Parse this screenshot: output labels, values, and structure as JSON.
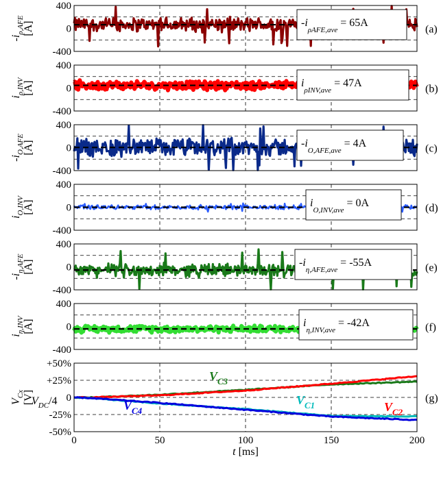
{
  "chart_data": [
    {
      "id": "a",
      "type": "line",
      "panel_label": "(a)",
      "ylabel_main": "-i",
      "ylabel_sub": "ρ,AFE",
      "ylabel_unit": "[A]",
      "yticks": [
        "400",
        "0",
        "-400"
      ],
      "ylim": [
        -400,
        400
      ],
      "series": [
        {
          "color": "#8b0000",
          "mean": 65,
          "amplitude": 150,
          "spike": 380
        }
      ],
      "annotation": {
        "main": "-i",
        "sub": "ρAFE,ave",
        "value": "= 65A"
      }
    },
    {
      "id": "b",
      "type": "line",
      "panel_label": "(b)",
      "ylabel_main": "i",
      "ylabel_sub": "ρ,INV",
      "ylabel_unit": "[A]",
      "yticks": [
        "400",
        "0",
        "-400"
      ],
      "ylim": [
        -400,
        400
      ],
      "series": [
        {
          "color": "#ff0000",
          "mean": 47,
          "amplitude": 90,
          "spike": 0
        }
      ],
      "annotation": {
        "main": "i",
        "sub": "ρINV,ave",
        "value": "= 47A"
      }
    },
    {
      "id": "c",
      "type": "line",
      "panel_label": "(c)",
      "ylabel_main": "-i",
      "ylabel_sub": "O,AFE",
      "ylabel_unit": "[A]",
      "yticks": [
        "400",
        "0",
        "-400"
      ],
      "ylim": [
        -400,
        400
      ],
      "series": [
        {
          "color": "#0a2a8a",
          "mean": 4,
          "amplitude": 190,
          "spike": 400
        }
      ],
      "annotation": {
        "main": "-i",
        "sub": "O,AFE,ave",
        "value": "= 4A"
      }
    },
    {
      "id": "d",
      "type": "line",
      "panel_label": "(d)",
      "ylabel_main": "i",
      "ylabel_sub": "O,INV",
      "ylabel_unit": "[A]",
      "yticks": [
        "400",
        "0",
        "-400"
      ],
      "ylim": [
        -400,
        400
      ],
      "series": [
        {
          "color": "#2a5cff",
          "mean": 0,
          "amplitude": 45,
          "spike": 80
        }
      ],
      "annotation": {
        "main": "i",
        "sub": "O,INV,ave",
        "value": "= 0A"
      }
    },
    {
      "id": "e",
      "type": "line",
      "panel_label": "(e)",
      "ylabel_main": "-i",
      "ylabel_sub": "η,AFE",
      "ylabel_unit": "[A]",
      "yticks": [
        "400",
        "0",
        "-400"
      ],
      "ylim": [
        -400,
        400
      ],
      "series": [
        {
          "color": "#1a7a1a",
          "mean": -55,
          "amplitude": 140,
          "spike": 400
        }
      ],
      "annotation": {
        "main": "-i",
        "sub": "η,AFE,ave",
        "value": "= -55A"
      }
    },
    {
      "id": "f",
      "type": "line",
      "panel_label": "(f)",
      "ylabel_main": "i",
      "ylabel_sub": "η,INV",
      "ylabel_unit": "[A]",
      "yticks": [
        "400",
        "0",
        "-400"
      ],
      "ylim": [
        -400,
        400
      ],
      "series": [
        {
          "color": "#33dd33",
          "mean": -42,
          "amplitude": 70,
          "spike": 0
        }
      ],
      "annotation": {
        "main": "i",
        "sub": "η,INV,ave",
        "value": "= -42A"
      }
    },
    {
      "id": "g",
      "type": "line",
      "panel_label": "(g)",
      "ylabel_main": "V",
      "ylabel_sub": "Cx",
      "ylabel_unit": "[V]",
      "ylabel_extra": "V",
      "ylabel_extra_sub": "DC",
      "ylabel_extra_tail": "/4",
      "yticks": [
        "+50%",
        "+25%",
        "0",
        "-25%",
        "-50%"
      ],
      "ytick_values": [
        50,
        25,
        0,
        -25,
        -50
      ],
      "ylim": [
        -50,
        50
      ],
      "xlim": [
        0,
        200
      ],
      "xticks": [
        "0",
        "50",
        "100",
        "150",
        "200"
      ],
      "xtick_values": [
        0,
        50,
        100,
        150,
        200
      ],
      "xlabel_main": "t",
      "xlabel_unit": "[ms]",
      "series": [
        {
          "name": "V",
          "sub": "C3",
          "color": "#1a7a1a",
          "x": [
            0,
            10,
            50,
            100,
            150,
            200
          ],
          "y": [
            0,
            0,
            4,
            11,
            19,
            23
          ]
        },
        {
          "name": "V",
          "sub": "C2",
          "color": "#ff0000",
          "x": [
            0,
            10,
            50,
            100,
            150,
            200
          ],
          "y": [
            0,
            0,
            3,
            10,
            20,
            31
          ]
        },
        {
          "name": "V",
          "sub": "C1",
          "color": "#00bbbb",
          "x": [
            0,
            10,
            50,
            100,
            150,
            200
          ],
          "y": [
            0,
            -1,
            -9,
            -17,
            -27,
            -28
          ]
        },
        {
          "name": "V",
          "sub": "C4",
          "color": "#0000dd",
          "x": [
            0,
            10,
            50,
            100,
            150,
            200
          ],
          "y": [
            0,
            -1,
            -8,
            -18,
            -28,
            -33
          ]
        }
      ]
    }
  ]
}
